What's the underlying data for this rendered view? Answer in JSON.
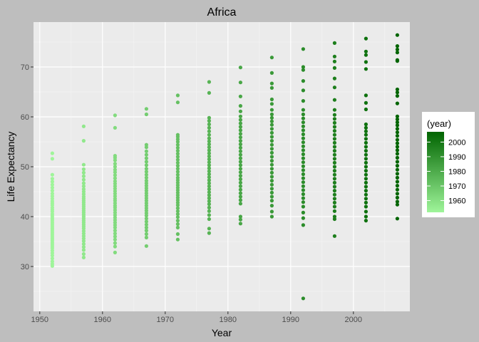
{
  "chart_data": {
    "type": "scatter",
    "title": "Africa",
    "xlabel": "Year",
    "ylabel": "Life Expectancy",
    "xlim": [
      1949,
      2009
    ],
    "ylim": [
      21,
      79
    ],
    "x_ticks": [
      1950,
      1960,
      1970,
      1980,
      1990,
      2000
    ],
    "y_ticks": [
      30,
      40,
      50,
      60,
      70
    ],
    "grid": true,
    "legend": {
      "title": "(year)",
      "type": "color-gradient",
      "placement": "right",
      "ticks": [
        1960,
        1970,
        1980,
        1990,
        2000
      ],
      "range": [
        1952,
        2007
      ],
      "color_low": "#9ff59a",
      "color_high": "#006400"
    },
    "points_by_year": [
      {
        "year": 1952,
        "y": [
          52.7,
          51.6,
          48.4,
          47.6,
          47,
          46.4,
          45.8,
          45.2,
          44.6,
          44.1,
          43.6,
          43.1,
          42.7,
          42.3,
          41.8,
          41.4,
          41,
          40.5,
          40.1,
          39.7,
          39.3,
          38.9,
          38.5,
          38.1,
          37.7,
          37.3,
          36.9,
          36.5,
          36.1,
          35.7,
          35.3,
          34.9,
          34.5,
          34.1,
          33.7,
          33.2,
          32.7,
          32.2,
          31.6,
          31,
          30.5,
          30.1
        ]
      },
      {
        "year": 1957,
        "y": [
          58.1,
          55.2,
          50.4,
          49.5,
          48.8,
          48.1,
          47.4,
          46.7,
          46.1,
          45.5,
          45,
          44.5,
          44,
          43.6,
          43.2,
          42.8,
          42.4,
          42,
          41.6,
          41.2,
          40.8,
          40.4,
          40,
          39.6,
          39.2,
          38.8,
          38.4,
          38,
          37.6,
          37.1,
          36.6,
          36.1,
          35.6,
          35.1,
          34.5,
          33.9,
          33.3,
          32.5,
          31.8
        ]
      },
      {
        "year": 1962,
        "y": [
          60.3,
          57.8,
          52.2,
          51.8,
          51.3,
          50.6,
          50,
          49.4,
          48.9,
          48.3,
          47.7,
          47.1,
          46.6,
          46.1,
          45.6,
          45.1,
          44.6,
          44.1,
          43.6,
          43.2,
          42.7,
          42.2,
          41.8,
          41.3,
          40.8,
          40.3,
          39.8,
          39.3,
          38.8,
          38.3,
          37.8,
          37.2,
          36.6,
          36,
          35.4,
          34.7,
          34,
          32.8
        ]
      },
      {
        "year": 1967,
        "y": [
          61.6,
          60.5,
          54.4,
          53.9,
          53.1,
          52.4,
          51.7,
          51,
          50.3,
          49.6,
          49,
          48.4,
          47.8,
          47.2,
          46.7,
          46.2,
          45.7,
          45.2,
          44.7,
          44.2,
          43.7,
          43.2,
          42.7,
          42.2,
          41.7,
          41.2,
          40.7,
          40.2,
          39.6,
          39,
          38.4,
          37.8,
          37.2,
          36.5,
          35.8,
          34.1
        ]
      },
      {
        "year": 1972,
        "y": [
          64.3,
          62.9,
          56.4,
          56,
          55.5,
          55,
          54.4,
          53.8,
          53.2,
          52.6,
          52,
          51.4,
          50.8,
          50.2,
          49.6,
          49,
          48.4,
          47.8,
          47.3,
          46.8,
          46.3,
          45.8,
          45.3,
          44.8,
          44.3,
          43.8,
          43.3,
          42.8,
          42.3,
          41.7,
          41.1,
          40.5,
          39.9,
          39.2,
          38.5,
          37.8,
          36.5,
          35.4
        ]
      },
      {
        "year": 1977,
        "y": [
          67,
          64.8,
          59.8,
          59.2,
          58.5,
          57.8,
          57.1,
          56.4,
          55.7,
          55.1,
          54.5,
          53.9,
          53.3,
          52.7,
          52.1,
          51.5,
          50.9,
          50.3,
          49.7,
          49.1,
          48.5,
          47.9,
          47.3,
          46.7,
          46.1,
          45.5,
          44.9,
          44.3,
          43.7,
          43.1,
          42.5,
          41.8,
          41.1,
          40.3,
          39.5,
          37.6,
          36.7
        ]
      },
      {
        "year": 1982,
        "y": [
          69.9,
          66.9,
          64.1,
          62.2,
          61.1,
          60.1,
          59.4,
          58.7,
          58,
          57.3,
          56.6,
          55.9,
          55.2,
          54.5,
          53.8,
          53.1,
          52.4,
          51.7,
          51,
          50.3,
          49.6,
          48.9,
          48.2,
          47.5,
          46.8,
          46.1,
          45.4,
          44.7,
          44,
          43.3,
          42.6,
          40,
          39.4,
          38.6
        ]
      },
      {
        "year": 1987,
        "y": [
          71.9,
          68.8,
          66.7,
          65.8,
          63.5,
          62.6,
          61.4,
          60.5,
          59.8,
          59.1,
          58.4,
          57.6,
          56.8,
          56,
          55.2,
          54.4,
          53.6,
          52.8,
          52,
          51.2,
          50.4,
          49.6,
          48.8,
          48,
          47.2,
          46.4,
          45.6,
          44.8,
          44,
          43.2,
          42.2,
          41,
          40
        ]
      },
      {
        "year": 1992,
        "y": [
          73.6,
          70,
          69.4,
          67.2,
          65.3,
          63.2,
          61.4,
          60.5,
          59.7,
          58.9,
          58.1,
          57.3,
          56.5,
          55.7,
          54.9,
          54.1,
          53.3,
          52.5,
          51.7,
          50.9,
          50.1,
          49.3,
          48.5,
          47.7,
          46.9,
          46.1,
          45.3,
          44.5,
          43.7,
          42.9,
          42,
          40.8,
          39.7,
          38.3,
          23.6
        ]
      },
      {
        "year": 1997,
        "y": [
          74.8,
          72.1,
          71.1,
          69.8,
          67.7,
          65.9,
          63.4,
          61.4,
          60.4,
          59.6,
          58.8,
          58,
          57.2,
          56.4,
          55.6,
          54.8,
          54,
          53.2,
          52.4,
          51.6,
          50.8,
          50,
          49.2,
          48.4,
          47.6,
          46.8,
          46,
          45.2,
          44.4,
          43.6,
          42.8,
          42,
          41.1,
          40,
          39.5,
          36.1
        ]
      },
      {
        "year": 2002,
        "y": [
          75.7,
          73.1,
          72.4,
          71,
          69.6,
          64.3,
          62.8,
          61.5,
          58.5,
          57.8,
          57.1,
          56.4,
          55.6,
          54.8,
          54,
          53.2,
          52.4,
          51.6,
          50.8,
          50,
          49.2,
          48.4,
          47.6,
          46.8,
          46,
          45.2,
          44.4,
          43.6,
          42.8,
          42,
          41,
          40,
          39.2
        ]
      },
      {
        "year": 2007,
        "y": [
          76.4,
          74.2,
          73.5,
          72.9,
          71.4,
          71.2,
          65.5,
          64.9,
          64.2,
          62.7,
          60.1,
          59.5,
          58.9,
          58.3,
          57.6,
          56.9,
          56.2,
          55.4,
          54.7,
          54,
          53.3,
          52.6,
          51.8,
          51,
          50.2,
          49.4,
          48.6,
          47.8,
          47,
          46.2,
          45.4,
          44.6,
          43.8,
          43,
          42.4,
          39.6
        ]
      }
    ]
  }
}
